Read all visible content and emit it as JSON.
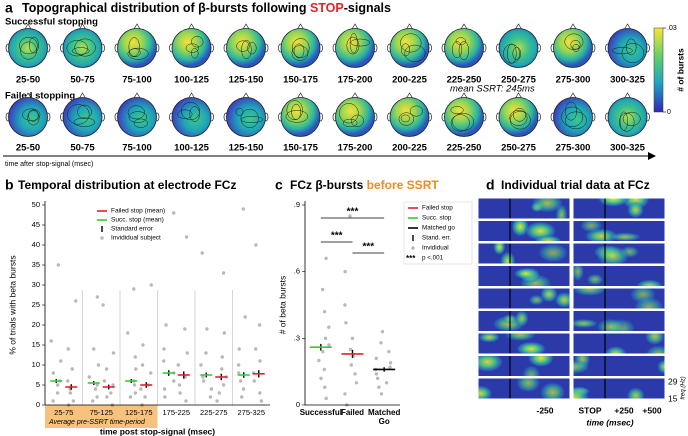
{
  "panel_a": {
    "letter": "a",
    "title": [
      "Topographical distribution of β-bursts following ",
      "STOP",
      "-signals"
    ],
    "title_colors": [
      "#000000",
      "#e8202a",
      "#000000"
    ],
    "rows": [
      "Successful stopping",
      "Failed stopping"
    ],
    "bins": [
      "25-50",
      "50-75",
      "75-100",
      "100-125",
      "125-150",
      "150-175",
      "175-200",
      "200-225",
      "225-250",
      "250-275",
      "275-300",
      "300-325"
    ],
    "annotation": "mean SSRT: 245ms",
    "x_axis_label": "time after stop-signal (msec)",
    "colorbar": {
      "label": "# of bursts",
      "lim": [
        0,
        0.03
      ],
      "ticks": [
        {
          "value": 0.03,
          "label": ".03"
        },
        0
      ]
    }
  },
  "chart_data": [
    {
      "type": "dot",
      "letter": "b",
      "title": "Temporal distribution at electrode FCz",
      "y_label": "% of trials with beta bursts",
      "x_label": "time post stop-signal (msec)",
      "band_label": "Average pre-SSRT time-period",
      "categories": [
        "25-75",
        "75-125",
        "125-175",
        "175-225",
        "225-275",
        "275-325"
      ],
      "ylim": [
        0,
        50
      ],
      "yticks": [
        0,
        5,
        10,
        15,
        20,
        25,
        30,
        35,
        40,
        45,
        50
      ],
      "series": [
        {
          "name": "Failed stop (mean)",
          "color": "#e8202a",
          "values": [
            4.5,
            4.5,
            5,
            7.5,
            7,
            7.8
          ],
          "errors": [
            0.7,
            0.6,
            0.7,
            0.9,
            0.8,
            0.9
          ],
          "subjects": [
            [
              0,
              1,
              3,
              4,
              6,
              9,
              14,
              26
            ],
            [
              0,
              2,
              3,
              5,
              6,
              9,
              13,
              25
            ],
            [
              0,
              2,
              4,
              5,
              8,
              10,
              15,
              30
            ],
            [
              1,
              3,
              5,
              7,
              10,
              13,
              19,
              42
            ],
            [
              1,
              3,
              5,
              7,
              9,
              12,
              18,
              33
            ],
            [
              1,
              3,
              6,
              8,
              11,
              14,
              20,
              40
            ]
          ]
        },
        {
          "name": "Succ. stop (mean)",
          "color": "#2fd12f",
          "values": [
            6,
            5.5,
            6,
            8,
            7.5,
            7.5
          ],
          "errors": [
            0.5,
            0.5,
            0.5,
            0.7,
            0.6,
            0.7
          ],
          "subjects": [
            [
              1,
              3,
              5,
              6,
              8,
              11,
              16,
              35
            ],
            [
              1,
              2,
              4,
              5,
              7,
              10,
              14,
              27
            ],
            [
              2,
              3,
              5,
              6,
              9,
              12,
              18,
              29
            ],
            [
              2,
              4,
              6,
              8,
              11,
              14,
              20,
              48
            ],
            [
              2,
              4,
              6,
              7,
              10,
              13,
              19,
              38
            ],
            [
              2,
              4,
              6,
              8,
              10,
              14,
              22,
              49
            ]
          ]
        }
      ],
      "legend_extra": [
        "Standard error",
        "Invididual subject"
      ]
    },
    {
      "type": "dot",
      "letter": "c",
      "title": [
        "FCz β-bursts ",
        "before SSRT"
      ],
      "title_colors": [
        "#000000",
        "#f08a1c"
      ],
      "y_label": "# of beta bursts",
      "categories": [
        "Successful",
        "Failed",
        "Matched Go"
      ],
      "category_colors": [
        "#2fd12f",
        "#e8202a",
        "#000000"
      ],
      "ylim": [
        0,
        0.9
      ],
      "yticks": [
        0,
        {
          "value": 0.3,
          "label": ".3"
        },
        {
          "value": 0.6,
          "label": ".6"
        },
        {
          "value": 0.9,
          "label": ".9"
        }
      ],
      "values": [
        0.26,
        0.23,
        0.16
      ],
      "errors": [
        0.015,
        0.018,
        0.01
      ],
      "subjects": [
        [
          0.03,
          0.08,
          0.12,
          0.16,
          0.2,
          0.24,
          0.27,
          0.3,
          0.35,
          0.42,
          0.52,
          0.66
        ],
        [
          0,
          0.05,
          0.1,
          0.14,
          0.18,
          0.22,
          0.25,
          0.3,
          0.37,
          0.45,
          0.6,
          0.85
        ],
        [
          0.05,
          0.08,
          0.1,
          0.12,
          0.14,
          0.16,
          0.17,
          0.19,
          0.21,
          0.24,
          0.28,
          0.33
        ]
      ],
      "legend": [
        {
          "name": "Failed stop",
          "color": "#e8202a"
        },
        {
          "name": "Succ. stop",
          "color": "#2fd12f"
        },
        {
          "name": "Matched go",
          "color": "#000000"
        },
        {
          "name": "Stand. err."
        },
        {
          "name": "Invididual"
        },
        {
          "name": "p <.001",
          "marker": "***"
        }
      ],
      "significance_color": "#e8202a",
      "significance": [
        {
          "label": "***",
          "pair": [
            0,
            2
          ]
        },
        {
          "label": "***",
          "pair": [
            0,
            1
          ]
        },
        {
          "label": "***",
          "pair": [
            1,
            2
          ]
        }
      ]
    }
  ],
  "panel_d": {
    "letter": "d",
    "title": "Individual trial data at FCz",
    "time_ticks": [
      "-250",
      "STOP",
      "+250",
      "+500"
    ],
    "stop_color": "#e8202a",
    "time_label": "time (msec)",
    "freq_ticks": [
      "29",
      "15"
    ],
    "freq_label": "freq.(Hz)"
  }
}
